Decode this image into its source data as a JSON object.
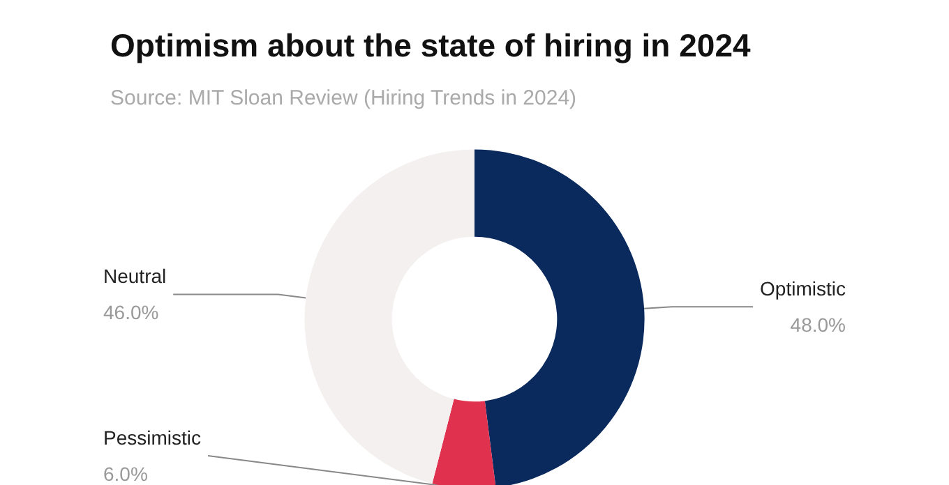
{
  "chart_data": {
    "type": "donut",
    "title": "Optimism about the state of hiring in 2024",
    "subtitle": "Source: MIT Sloan Review (Hiring Trends in 2024)",
    "categories": [
      "Optimistic",
      "Pessimistic",
      "Neutral"
    ],
    "values": [
      48,
      6,
      46
    ],
    "value_labels": [
      "48.0%",
      "6.0%",
      "46.0%"
    ],
    "colors": [
      "#0a2a5e",
      "#e0314f",
      "#f5f0f0"
    ],
    "legend": false
  }
}
